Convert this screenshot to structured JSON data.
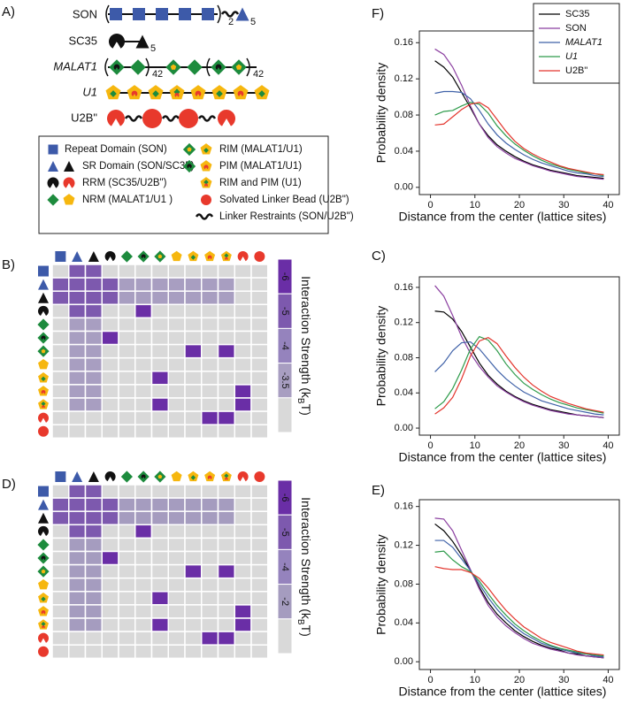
{
  "schematic": {
    "label": "A)",
    "molecules": [
      {
        "name": "SON",
        "subscripts": [
          "2",
          "5"
        ]
      },
      {
        "name": "SC35",
        "subscripts": [
          "5"
        ]
      },
      {
        "name": "MALAT1",
        "subscripts": [
          "4",
          "2",
          "4",
          "2"
        ]
      },
      {
        "name": "U1"
      },
      {
        "name": "U2B\""
      }
    ]
  },
  "legend": {
    "items": [
      "Repeat Domain (SON)",
      "SR Domain (SON/SC35)",
      "RRM (SC35/U2B\")",
      "NRM (MALAT1/U1 )",
      "RIM (MALAT1/U1)",
      "PIM (MALAT1/U1)",
      "RIM and PIM (U1)",
      "Solvated Linker Bead (U2B\")",
      "Linker Restraints (SON/U2B\")"
    ]
  },
  "chart_data": [
    {
      "type": "line",
      "panel": "F)",
      "ylabel": "Probability density",
      "xlabel": "Distance from the center (lattice sites)",
      "x": [
        1,
        3,
        5,
        7,
        9,
        11,
        13,
        15,
        17,
        19,
        21,
        23,
        25,
        27,
        29,
        31,
        33,
        35,
        37,
        39
      ],
      "xlim": [
        -2.5,
        42.5
      ],
      "xticks": [
        0,
        10,
        20,
        30,
        40
      ],
      "ylim": [
        -0.008,
        0.173
      ],
      "yticks": [
        {
          "value": 0,
          "label": "0.00"
        },
        {
          "value": 0.04,
          "label": "0.04"
        },
        {
          "value": 0.08,
          "label": "0.08"
        },
        {
          "value": 0.12,
          "label": "0.12"
        },
        {
          "value": 0.16,
          "label": "0.16"
        }
      ],
      "legend": "upper right",
      "series": [
        {
          "name": "SC35",
          "color": "#000000",
          "values": [
            0.14,
            0.133,
            0.122,
            0.105,
            0.088,
            0.07,
            0.057,
            0.047,
            0.04,
            0.034,
            0.029,
            0.025,
            0.022,
            0.019,
            0.017,
            0.015,
            0.013,
            0.012,
            0.011,
            0.01
          ]
        },
        {
          "name": "SON",
          "color": "#8b3fa0",
          "values": [
            0.153,
            0.147,
            0.133,
            0.113,
            0.09,
            0.07,
            0.055,
            0.045,
            0.038,
            0.032,
            0.028,
            0.024,
            0.021,
            0.018,
            0.016,
            0.014,
            0.012,
            0.011,
            0.01,
            0.009
          ]
        },
        {
          "name": "MALAT1",
          "italic": true,
          "color": "#3f61a8",
          "values": [
            0.104,
            0.106,
            0.106,
            0.105,
            0.098,
            0.085,
            0.07,
            0.058,
            0.049,
            0.042,
            0.036,
            0.031,
            0.027,
            0.024,
            0.021,
            0.018,
            0.016,
            0.015,
            0.013,
            0.012
          ]
        },
        {
          "name": "U1",
          "italic": true,
          "color": "#2e9b4b",
          "values": [
            0.08,
            0.084,
            0.085,
            0.09,
            0.094,
            0.092,
            0.082,
            0.068,
            0.057,
            0.048,
            0.041,
            0.035,
            0.03,
            0.026,
            0.023,
            0.02,
            0.018,
            0.016,
            0.015,
            0.013
          ]
        },
        {
          "name": "U2B\"",
          "color": "#e3352d",
          "values": [
            0.069,
            0.07,
            0.078,
            0.086,
            0.092,
            0.094,
            0.088,
            0.075,
            0.062,
            0.051,
            0.043,
            0.037,
            0.032,
            0.028,
            0.024,
            0.021,
            0.019,
            0.017,
            0.015,
            0.014
          ]
        }
      ]
    },
    {
      "type": "line",
      "panel": "C)",
      "ylabel": "Probability density",
      "xlabel": "Distance from the center (lattice sites)",
      "x": [
        1,
        3,
        5,
        7,
        9,
        11,
        13,
        15,
        17,
        19,
        21,
        23,
        25,
        27,
        29,
        31,
        33,
        35,
        37,
        39
      ],
      "xlim": [
        -2.5,
        42.5
      ],
      "xticks": [
        0,
        10,
        20,
        30,
        40
      ],
      "ylim": [
        -0.008,
        0.172
      ],
      "yticks": [
        {
          "value": 0,
          "label": "0.00"
        },
        {
          "value": 0.04,
          "label": "0.04"
        },
        {
          "value": 0.08,
          "label": "0.08"
        },
        {
          "value": 0.12,
          "label": "0.12"
        },
        {
          "value": 0.16,
          "label": "0.16"
        }
      ],
      "series": [
        {
          "color": "#000000",
          "values": [
            0.133,
            0.132,
            0.124,
            0.11,
            0.092,
            0.074,
            0.06,
            0.05,
            0.042,
            0.036,
            0.031,
            0.027,
            0.024,
            0.021,
            0.019,
            0.017,
            0.015,
            0.014,
            0.013,
            0.012
          ]
        },
        {
          "color": "#8b3fa0",
          "values": [
            0.162,
            0.15,
            0.128,
            0.104,
            0.085,
            0.07,
            0.058,
            0.048,
            0.041,
            0.035,
            0.03,
            0.026,
            0.023,
            0.02,
            0.018,
            0.016,
            0.015,
            0.014,
            0.013,
            0.012
          ]
        },
        {
          "color": "#3f61a8",
          "values": [
            0.064,
            0.074,
            0.088,
            0.097,
            0.098,
            0.09,
            0.078,
            0.066,
            0.056,
            0.048,
            0.041,
            0.036,
            0.031,
            0.028,
            0.025,
            0.022,
            0.02,
            0.018,
            0.016,
            0.015
          ]
        },
        {
          "color": "#2e9b4b",
          "values": [
            0.022,
            0.03,
            0.045,
            0.066,
            0.09,
            0.104,
            0.1,
            0.088,
            0.073,
            0.061,
            0.051,
            0.044,
            0.038,
            0.033,
            0.029,
            0.026,
            0.023,
            0.021,
            0.019,
            0.017
          ]
        },
        {
          "color": "#e3352d",
          "values": [
            0.016,
            0.023,
            0.035,
            0.056,
            0.082,
            0.099,
            0.103,
            0.096,
            0.082,
            0.069,
            0.058,
            0.049,
            0.042,
            0.036,
            0.032,
            0.028,
            0.025,
            0.022,
            0.02,
            0.018
          ]
        }
      ]
    },
    {
      "type": "line",
      "panel": "E)",
      "ylabel": "Probability density",
      "xlabel": "Distance from the center (lattice sites)",
      "x": [
        1,
        3,
        5,
        7,
        9,
        11,
        13,
        15,
        17,
        19,
        21,
        23,
        25,
        27,
        29,
        31,
        33,
        35,
        37,
        39
      ],
      "xlim": [
        -2.5,
        42.5
      ],
      "xticks": [
        0,
        10,
        20,
        30,
        40
      ],
      "ylim": [
        -0.008,
        0.167
      ],
      "yticks": [
        {
          "value": 0,
          "label": "0.00"
        },
        {
          "value": 0.04,
          "label": "0.04"
        },
        {
          "value": 0.08,
          "label": "0.08"
        },
        {
          "value": 0.12,
          "label": "0.12"
        },
        {
          "value": 0.16,
          "label": "0.16"
        }
      ],
      "series": [
        {
          "color": "#000000",
          "values": [
            0.142,
            0.135,
            0.124,
            0.11,
            0.094,
            0.077,
            0.061,
            0.049,
            0.04,
            0.032,
            0.026,
            0.021,
            0.017,
            0.014,
            0.012,
            0.009,
            0.008,
            0.006,
            0.005,
            0.004
          ]
        },
        {
          "color": "#8b3fa0",
          "values": [
            0.148,
            0.147,
            0.135,
            0.115,
            0.095,
            0.075,
            0.058,
            0.046,
            0.037,
            0.03,
            0.024,
            0.019,
            0.016,
            0.013,
            0.011,
            0.009,
            0.007,
            0.006,
            0.005,
            0.004
          ]
        },
        {
          "color": "#3f61a8",
          "values": [
            0.125,
            0.125,
            0.118,
            0.106,
            0.094,
            0.08,
            0.066,
            0.054,
            0.044,
            0.036,
            0.029,
            0.024,
            0.019,
            0.016,
            0.013,
            0.011,
            0.009,
            0.008,
            0.006,
            0.005
          ]
        },
        {
          "color": "#2e9b4b",
          "values": [
            0.113,
            0.114,
            0.105,
            0.098,
            0.093,
            0.083,
            0.07,
            0.058,
            0.048,
            0.039,
            0.032,
            0.026,
            0.021,
            0.017,
            0.014,
            0.012,
            0.01,
            0.008,
            0.007,
            0.006
          ]
        },
        {
          "color": "#e3352d",
          "values": [
            0.098,
            0.096,
            0.095,
            0.095,
            0.092,
            0.086,
            0.076,
            0.064,
            0.053,
            0.044,
            0.036,
            0.03,
            0.024,
            0.02,
            0.017,
            0.014,
            0.011,
            0.009,
            0.008,
            0.007
          ]
        }
      ]
    },
    {
      "type": "heatmap",
      "panel": "B)",
      "colorbar_ticks": [
        -6,
        -5,
        -4,
        -3.5
      ],
      "colorbar_colors": [
        "#6a2ea6",
        "#7d59ae",
        "#9583bd",
        "#a89ec1"
      ],
      "null_color": "#d9d9d9",
      "colorbar_title": "Interaction Strength (k",
      "colorbar_title_sub": "B",
      "colorbar_title_end": "T)",
      "matrix": [
        [
          null,
          -5,
          -5,
          null,
          null,
          null,
          null,
          null,
          null,
          null,
          null,
          null,
          null
        ],
        [
          -5,
          -5,
          -5,
          -5,
          -3.5,
          -3.5,
          -3.5,
          -3.5,
          -3.5,
          -3.5,
          -3.5,
          null,
          null
        ],
        [
          -5,
          -5,
          -5,
          -5,
          -3.5,
          -3.5,
          -3.5,
          -3.5,
          -3.5,
          -3.5,
          -3.5,
          null,
          null
        ],
        [
          null,
          -5,
          -5,
          null,
          null,
          -6,
          null,
          null,
          null,
          null,
          null,
          null,
          null
        ],
        [
          null,
          -3.5,
          -3.5,
          null,
          null,
          null,
          null,
          null,
          null,
          null,
          null,
          null,
          null
        ],
        [
          null,
          -3.5,
          -3.5,
          -6,
          null,
          null,
          null,
          null,
          null,
          null,
          null,
          null,
          null
        ],
        [
          null,
          -3.5,
          -3.5,
          null,
          null,
          null,
          null,
          null,
          -6,
          null,
          -6,
          null,
          null
        ],
        [
          null,
          -3.5,
          -3.5,
          null,
          null,
          null,
          null,
          null,
          null,
          null,
          null,
          null,
          null
        ],
        [
          null,
          -3.5,
          -3.5,
          null,
          null,
          null,
          -6,
          null,
          null,
          null,
          null,
          null,
          null
        ],
        [
          null,
          -3.5,
          -3.5,
          null,
          null,
          null,
          null,
          null,
          null,
          null,
          null,
          -6,
          null
        ],
        [
          null,
          -3.5,
          -3.5,
          null,
          null,
          null,
          -6,
          null,
          null,
          null,
          null,
          -6,
          null
        ],
        [
          null,
          null,
          null,
          null,
          null,
          null,
          null,
          null,
          null,
          -6,
          -6,
          null,
          null
        ],
        [
          null,
          null,
          null,
          null,
          null,
          null,
          null,
          null,
          null,
          null,
          null,
          null,
          null
        ]
      ]
    },
    {
      "type": "heatmap",
      "panel": "D)",
      "colorbar_ticks": [
        -6,
        -5,
        -4,
        -2
      ],
      "colorbar_colors": [
        "#6a2ea6",
        "#7d59ae",
        "#9583bd",
        "#a59cbf"
      ],
      "null_color": "#d9d9d9",
      "colorbar_title": "Interaction Strength (k",
      "colorbar_title_sub": "B",
      "colorbar_title_end": "T)",
      "matrix": [
        [
          null,
          -5,
          -5,
          null,
          null,
          null,
          null,
          null,
          null,
          null,
          null,
          null,
          null
        ],
        [
          -5,
          -5,
          -5,
          -5,
          -2,
          -2,
          -2,
          -2,
          -2,
          -2,
          -2,
          null,
          null
        ],
        [
          -5,
          -5,
          -5,
          -5,
          -2,
          -2,
          -2,
          -2,
          -2,
          -2,
          -2,
          null,
          null
        ],
        [
          null,
          -5,
          -5,
          null,
          null,
          -6,
          null,
          null,
          null,
          null,
          null,
          null,
          null
        ],
        [
          null,
          -2,
          -2,
          null,
          null,
          null,
          null,
          null,
          null,
          null,
          null,
          null,
          null
        ],
        [
          null,
          -2,
          -2,
          -6,
          null,
          null,
          null,
          null,
          null,
          null,
          null,
          null,
          null
        ],
        [
          null,
          -2,
          -2,
          null,
          null,
          null,
          null,
          null,
          -6,
          null,
          -6,
          null,
          null
        ],
        [
          null,
          -2,
          -2,
          null,
          null,
          null,
          null,
          null,
          null,
          null,
          null,
          null,
          null
        ],
        [
          null,
          -2,
          -2,
          null,
          null,
          null,
          -6,
          null,
          null,
          null,
          null,
          null,
          null
        ],
        [
          null,
          -2,
          -2,
          null,
          null,
          null,
          null,
          null,
          null,
          null,
          null,
          -6,
          null
        ],
        [
          null,
          -2,
          -2,
          null,
          null,
          null,
          -6,
          null,
          null,
          null,
          null,
          -6,
          null
        ],
        [
          null,
          null,
          null,
          null,
          null,
          null,
          null,
          null,
          null,
          -6,
          -6,
          null,
          null
        ],
        [
          null,
          null,
          null,
          null,
          null,
          null,
          null,
          null,
          null,
          null,
          null,
          null,
          null
        ]
      ]
    }
  ]
}
